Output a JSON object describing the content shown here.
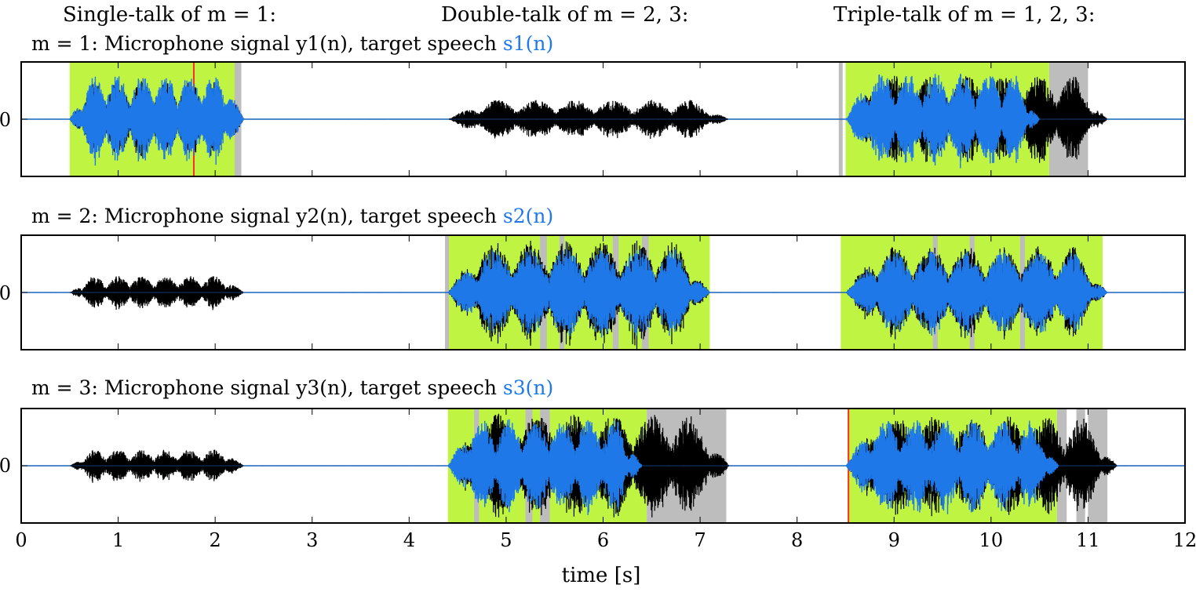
{
  "headers": {
    "single": "Single-talk of m = 1:",
    "double": "Double-talk of m = 2, 3:",
    "triple": "Triple-talk of m = 1, 2, 3:"
  },
  "panels": [
    {
      "title_text": "m = 1: Microphone signal y1(n), target speech ",
      "title_target": "s1(n)",
      "y_tick": "0"
    },
    {
      "title_text": "m = 2: Microphone signal y2(n), target speech ",
      "title_target": "s2(n)",
      "y_tick": "0"
    },
    {
      "title_text": "m = 3: Microphone signal y3(n), target speech ",
      "title_target": "s3(n)",
      "y_tick": "0"
    }
  ],
  "colors": {
    "target": "#1f78e8",
    "mixture": "#000000",
    "green_region": "#bff542",
    "gray_region": "#bdbdbd",
    "red_marker": "#ff2a2a"
  },
  "chart_data": {
    "type": "area",
    "x_range": [
      0,
      12
    ],
    "x_ticks": [
      "0",
      "1",
      "2",
      "3",
      "4",
      "5",
      "6",
      "7",
      "8",
      "9",
      "10",
      "11",
      "12"
    ],
    "xlabel": "time [s]",
    "y_ticks": [
      "0"
    ],
    "panels": [
      {
        "mixture_bursts": [
          {
            "start": 0.5,
            "end": 2.3,
            "amp": 0.7
          },
          {
            "start": 4.4,
            "end": 7.3,
            "amp": 0.35
          },
          {
            "start": 8.5,
            "end": 11.2,
            "amp": 0.8
          }
        ],
        "target_bursts": [
          {
            "start": 0.5,
            "end": 2.3,
            "amp": 0.82
          },
          {
            "start": 8.5,
            "end": 10.5,
            "amp": 0.85
          }
        ],
        "green_regions": [
          [
            0.5,
            2.25
          ],
          [
            8.5,
            10.6
          ]
        ],
        "gray_regions": [
          [
            10.6,
            11.0
          ],
          [
            2.2,
            2.27
          ],
          [
            8.43,
            8.47
          ]
        ],
        "red_markers": [
          1.78
        ]
      },
      {
        "mixture_bursts": [
          {
            "start": 0.5,
            "end": 2.3,
            "amp": 0.3
          },
          {
            "start": 4.4,
            "end": 7.1,
            "amp": 0.95
          },
          {
            "start": 8.5,
            "end": 11.2,
            "amp": 0.85
          }
        ],
        "target_bursts": [
          {
            "start": 4.4,
            "end": 7.1,
            "amp": 0.8
          },
          {
            "start": 8.5,
            "end": 11.2,
            "amp": 0.75
          }
        ],
        "green_regions": [
          [
            4.4,
            7.1
          ],
          [
            8.45,
            11.15
          ]
        ],
        "gray_regions": [
          [
            4.37,
            4.41
          ],
          [
            5.35,
            5.42
          ],
          [
            5.55,
            5.6
          ],
          [
            6.1,
            6.16
          ],
          [
            6.4,
            6.47
          ],
          [
            9.4,
            9.45
          ],
          [
            9.78,
            9.83
          ],
          [
            10.3,
            10.35
          ]
        ],
        "red_markers": []
      },
      {
        "mixture_bursts": [
          {
            "start": 0.5,
            "end": 2.3,
            "amp": 0.3
          },
          {
            "start": 4.4,
            "end": 7.3,
            "amp": 0.95
          },
          {
            "start": 8.5,
            "end": 11.3,
            "amp": 0.9
          }
        ],
        "target_bursts": [
          {
            "start": 4.4,
            "end": 6.4,
            "amp": 0.85
          },
          {
            "start": 8.5,
            "end": 10.7,
            "amp": 0.85
          }
        ],
        "green_regions": [
          [
            4.4,
            6.45
          ],
          [
            8.52,
            10.68
          ]
        ],
        "gray_regions": [
          [
            6.45,
            7.27
          ],
          [
            10.68,
            10.78
          ],
          [
            10.88,
            10.97
          ],
          [
            11.0,
            11.2
          ],
          [
            4.67,
            4.72
          ],
          [
            5.2,
            5.27
          ],
          [
            5.35,
            5.45
          ]
        ],
        "red_markers": [
          8.53
        ]
      }
    ]
  }
}
